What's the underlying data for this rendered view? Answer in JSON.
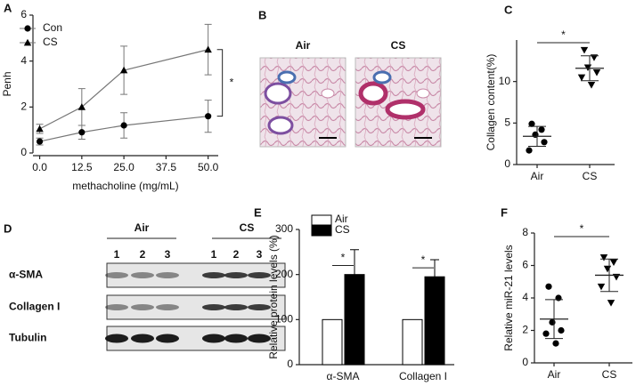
{
  "chart_data": [
    {
      "panel": "A",
      "type": "line",
      "x": [
        0,
        12.5,
        25,
        50
      ],
      "series": [
        {
          "name": "Con",
          "marker": "circle",
          "color": "#000000",
          "values": [
            0.5,
            0.9,
            1.2,
            1.6
          ],
          "errors": [
            0.15,
            0.3,
            0.55,
            0.7
          ]
        },
        {
          "name": "CS",
          "marker": "triangle",
          "color": "#000000",
          "values": [
            1.05,
            2.0,
            3.6,
            4.5
          ],
          "errors": [
            0.2,
            0.8,
            1.05,
            1.1
          ]
        }
      ],
      "xlim": [
        -2,
        53
      ],
      "xticks": [
        {
          "value": 0,
          "label": "0.0"
        },
        12.5,
        {
          "value": 25,
          "label": "25.0"
        },
        37.5,
        {
          "value": 50,
          "label": "50.0"
        }
      ],
      "ylim": [
        0,
        6
      ],
      "yticks": [
        0,
        2,
        4,
        6
      ],
      "xlabel": "methacholine (mg/mL)",
      "ylabel": "Penh",
      "annotation": "*"
    },
    {
      "panel": "B",
      "type": "image",
      "labels": [
        "Air",
        "CS"
      ]
    },
    {
      "panel": "C",
      "type": "dot",
      "categories": [
        "Air",
        "CS"
      ],
      "markers": [
        "circle",
        "triangle-down"
      ],
      "points": [
        [
          4.9,
          4.2,
          3.6,
          2.7,
          1.7
        ],
        [
          13.8,
          12.9,
          11.7,
          11.1,
          10.5,
          9.6
        ]
      ],
      "mean": [
        3.4,
        11.6
      ],
      "sd": [
        1.2,
        1.5
      ],
      "ylim": [
        0,
        15
      ],
      "yticks": [
        0,
        5,
        10
      ],
      "ylabel": "Collagen content(%)",
      "annotation": "*"
    },
    {
      "panel": "D",
      "type": "blot",
      "groups": [
        "Air",
        "CS"
      ],
      "lanes": [
        "1",
        "2",
        "3",
        "1",
        "2",
        "3"
      ],
      "rows": [
        "α-SMA",
        "Collagen I",
        "Tubulin"
      ]
    },
    {
      "panel": "E",
      "type": "bar",
      "categories": [
        "α-SMA",
        "Collagen I"
      ],
      "series": [
        {
          "name": "Air",
          "color": "#ffffff",
          "values": [
            100,
            100
          ]
        },
        {
          "name": "CS",
          "color": "#000000",
          "values": [
            200,
            195
          ],
          "errors": [
            55,
            38
          ]
        }
      ],
      "ylim": [
        0,
        300
      ],
      "yticks": [
        0,
        100,
        200,
        300
      ],
      "ylabel": "Relative protein levels (%)",
      "annotations": [
        "*",
        "*"
      ]
    },
    {
      "panel": "F",
      "type": "dot",
      "categories": [
        "Air",
        "CS"
      ],
      "markers": [
        "circle",
        "triangle-down"
      ],
      "points": [
        [
          4.7,
          4.0,
          2.5,
          2.0,
          1.8,
          1.2
        ],
        [
          6.5,
          6.2,
          5.8,
          5.3,
          4.7,
          3.7
        ]
      ],
      "mean": [
        2.7,
        5.4
      ],
      "sd": [
        1.2,
        1.0
      ],
      "ylim": [
        0,
        8
      ],
      "yticks": [
        0,
        2,
        4,
        6,
        8
      ],
      "ylabel": "Relative miR-21 levels",
      "annotation": "*"
    }
  ]
}
